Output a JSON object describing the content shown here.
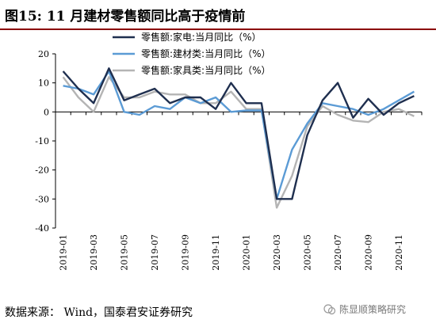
{
  "title": "图15: 11 月建材零售额同比高于疫情前",
  "source": "数据来源： Wind，国泰君安证券研究",
  "watermark": "陈显顺策略研究",
  "chart_data": {
    "type": "line",
    "x": [
      "2019-01",
      "2019-02",
      "2019-03",
      "2019-04",
      "2019-05",
      "2019-06",
      "2019-07",
      "2019-08",
      "2019-09",
      "2019-10",
      "2019-11",
      "2019-12",
      "2020-01",
      "2020-02",
      "2020-03",
      "2020-04",
      "2020-05",
      "2020-06",
      "2020-07",
      "2020-08",
      "2020-09",
      "2020-10",
      "2020-11",
      "2020-12"
    ],
    "x_tick_labels": [
      "2019-01",
      "2019-03",
      "2019-05",
      "2019-07",
      "2019-09",
      "2019-11",
      "2020-01",
      "2020-03",
      "2020-05",
      "2020-07",
      "2020-09",
      "2020-11"
    ],
    "ylim": [
      -40,
      20
    ],
    "y_ticks": [
      20,
      10,
      0,
      -10,
      -20,
      -30,
      -40
    ],
    "grid": false,
    "legend_position": "top-center",
    "series": [
      {
        "name": "零售额:家电:当月同比（%）",
        "color": "#1f2f4f",
        "values": [
          14,
          8,
          3,
          15,
          4,
          6,
          8,
          3,
          5,
          5,
          1,
          10,
          3,
          3,
          -30,
          -30,
          -8,
          4,
          10,
          -2,
          4.5,
          -1,
          3,
          5.5
        ]
      },
      {
        "name": "零售额:建材类:当月同比（%）",
        "color": "#5b9bd5",
        "values": [
          9,
          8,
          6,
          14,
          0,
          -1,
          2,
          1,
          5,
          3,
          5,
          0,
          0.5,
          0.5,
          -30,
          -13,
          -4,
          3,
          2,
          1,
          -1,
          1,
          4,
          7
        ]
      },
      {
        "name": "零售额:家具类:当月同比（%）",
        "color": "#b4b4b4",
        "values": [
          12,
          5,
          0,
          12,
          5,
          5,
          7,
          6,
          6,
          3,
          3,
          7,
          1,
          1,
          -33,
          -22,
          -5,
          2,
          -1,
          -3,
          -3.5,
          0,
          1,
          -1.5
        ]
      }
    ]
  }
}
